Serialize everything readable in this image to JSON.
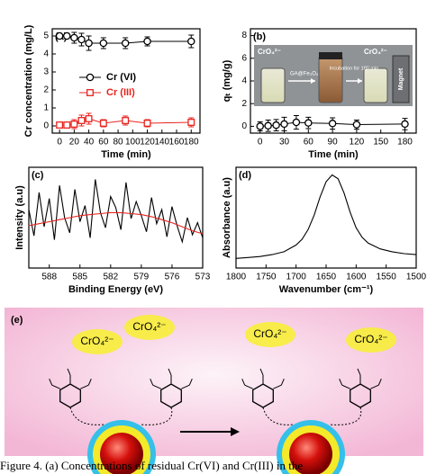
{
  "chart_data": [
    {
      "type": "line",
      "panel_label": "(a)",
      "xlabel": "Time (min)",
      "ylabel": "Cr concentration (mg/L)",
      "xlim": [
        -10,
        192
      ],
      "xticks": [
        0,
        20,
        40,
        60,
        80,
        100,
        120,
        140,
        160,
        180
      ],
      "ylim": [
        -0.4,
        5.4
      ],
      "yticks": [
        0,
        1,
        2,
        3,
        4,
        5
      ],
      "legend": "center-right",
      "series": [
        {
          "name": "Cr (VI)",
          "color": "#000000",
          "marker": "circle",
          "x": [
            0,
            10,
            20,
            30,
            40,
            60,
            90,
            120,
            180
          ],
          "values": [
            5.0,
            5.0,
            4.9,
            4.8,
            4.6,
            4.6,
            4.6,
            4.7,
            4.7
          ],
          "errors": [
            0.15,
            0.15,
            0.3,
            0.35,
            0.4,
            0.3,
            0.3,
            0.25,
            0.35
          ]
        },
        {
          "name": "Cr (III)",
          "color": "#e8231e",
          "marker": "square",
          "x": [
            0,
            10,
            20,
            30,
            40,
            60,
            90,
            120,
            180
          ],
          "values": [
            0.05,
            0.05,
            0.1,
            0.3,
            0.4,
            0.15,
            0.3,
            0.15,
            0.2
          ],
          "errors": [
            0.15,
            0.15,
            0.25,
            0.3,
            0.3,
            0.2,
            0.25,
            0.2,
            0.25
          ]
        }
      ]
    },
    {
      "type": "line",
      "panel_label": "(b)",
      "xlabel": "Time (min)",
      "ylabel": "qₜ (mg/g)",
      "xlim": [
        -12,
        194
      ],
      "xticks": [
        0,
        30,
        60,
        90,
        120,
        150,
        180
      ],
      "ylim": [
        -0.6,
        8.6
      ],
      "yticks": [
        0,
        2,
        4,
        6,
        8
      ],
      "inset_labels": [
        "CrO₄²⁻",
        "GA@Fe₃O₄",
        "Incubation for 180 min",
        "CrO₄²⁻",
        "Magnet"
      ],
      "series": [
        {
          "color": "#000000",
          "marker": "circle",
          "x": [
            0,
            10,
            20,
            30,
            45,
            60,
            90,
            120,
            180
          ],
          "values": [
            0,
            0.05,
            0.1,
            0.2,
            0.35,
            0.3,
            0.25,
            0.15,
            0.2
          ],
          "errors": [
            0.4,
            0.5,
            0.5,
            0.6,
            0.6,
            0.5,
            0.5,
            0.4,
            0.5
          ]
        }
      ]
    },
    {
      "type": "line",
      "panel_label": "(c)",
      "xlabel": "Binding Energy (eV)",
      "ylabel": "Intensity (a.u)",
      "xlim": [
        590,
        573
      ],
      "xticks": [
        588,
        585,
        582,
        579,
        576,
        573
      ],
      "ylim": [
        0,
        10
      ],
      "series": [
        {
          "color": "#000000",
          "x": [
            590,
            589.5,
            589,
            588.5,
            588,
            587.5,
            587,
            586.5,
            586,
            585.5,
            585,
            584.5,
            584,
            583.5,
            583,
            582.5,
            582,
            581.5,
            581,
            580.5,
            580,
            579.5,
            579,
            578.5,
            578,
            577.5,
            577,
            576.5,
            576,
            575.5,
            575,
            574.5,
            574,
            573.5,
            573
          ],
          "values": [
            5.8,
            3.2,
            7.5,
            4.1,
            6.9,
            2.8,
            8.2,
            5.0,
            3.5,
            7.8,
            4.6,
            6.2,
            3.0,
            8.8,
            5.5,
            4.0,
            7.1,
            6.0,
            3.8,
            8.5,
            4.9,
            6.6,
            5.2,
            3.6,
            7.0,
            4.4,
            5.8,
            3.1,
            6.1,
            4.2,
            2.6,
            5.0,
            3.3,
            4.5,
            3.0
          ]
        },
        {
          "color": "#e8231e",
          "x": [
            590,
            589,
            588,
            587,
            586,
            585,
            584,
            583,
            582,
            581,
            580,
            579,
            578,
            577,
            576,
            575,
            574,
            573
          ],
          "values": [
            4.2,
            4.4,
            4.6,
            4.8,
            5.0,
            5.2,
            5.3,
            5.4,
            5.5,
            5.5,
            5.4,
            5.3,
            5.1,
            4.8,
            4.5,
            4.1,
            3.7,
            3.4
          ]
        }
      ]
    },
    {
      "type": "line",
      "panel_label": "(d)",
      "xlabel": "Wavenumber (cm⁻¹)",
      "ylabel": "Absorbance (a.u)",
      "xlim": [
        1800,
        1500
      ],
      "xticks": [
        1800,
        1750,
        1700,
        1650,
        1600,
        1550,
        1500
      ],
      "ylim": [
        0,
        1.05
      ],
      "series": [
        {
          "color": "#000000",
          "x": [
            1800,
            1780,
            1760,
            1740,
            1720,
            1700,
            1690,
            1680,
            1670,
            1660,
            1650,
            1640,
            1630,
            1620,
            1610,
            1600,
            1590,
            1580,
            1560,
            1540,
            1520,
            1500
          ],
          "values": [
            0.1,
            0.11,
            0.12,
            0.14,
            0.17,
            0.24,
            0.3,
            0.4,
            0.55,
            0.74,
            0.9,
            0.97,
            0.93,
            0.78,
            0.58,
            0.42,
            0.32,
            0.26,
            0.2,
            0.17,
            0.15,
            0.14
          ]
        }
      ]
    }
  ],
  "diagram": {
    "label": "(e)",
    "ions": [
      "CrO₄²⁻",
      "CrO₄²⁻",
      "CrO₄²⁻",
      "CrO₄²⁻"
    ]
  },
  "caption": "Figure 4. (a) Concentrations of residual Cr(VI) and Cr(III) in the"
}
